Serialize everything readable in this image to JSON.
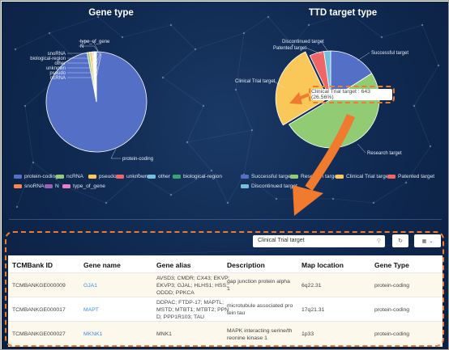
{
  "gene_type_panel": {
    "title": "Gene type",
    "slice_labels": [
      "type_of_gene",
      "N",
      "snoRNA",
      "biological-region",
      "other",
      "unknown",
      "pseudo",
      "ncRNA",
      "protein-coding"
    ],
    "legend": [
      {
        "label": "protein-coding",
        "color": "#5470c6"
      },
      {
        "label": "ncRNA",
        "color": "#91cc75"
      },
      {
        "label": "pseudo",
        "color": "#fac858"
      },
      {
        "label": "unknown",
        "color": "#ee6666"
      },
      {
        "label": "other",
        "color": "#73c0de"
      },
      {
        "label": "biological-region",
        "color": "#3ba272"
      },
      {
        "label": "snoRNA",
        "color": "#fc8452"
      },
      {
        "label": "N",
        "color": "#9a60b4"
      },
      {
        "label": "type_of_gene",
        "color": "#ea7ccc"
      }
    ]
  },
  "ttd_panel": {
    "title": "TTD target type",
    "slice_labels": [
      "Discontinued target",
      "Patented target",
      "Successful target",
      "Clinical Trial target",
      "Research target"
    ],
    "tooltip": "Clinical Trial target : 643 (26.56%)",
    "legend": [
      {
        "label": "Successful target",
        "color": "#5470c6"
      },
      {
        "label": "Research target",
        "color": "#91cc75"
      },
      {
        "label": "Clinical Trial target",
        "color": "#fac858"
      },
      {
        "label": "Patented target",
        "color": "#ee6666"
      },
      {
        "label": "Discontinued target",
        "color": "#73c0de"
      }
    ]
  },
  "chart_data": [
    {
      "type": "pie",
      "title": "Gene type",
      "categories": [
        "protein-coding",
        "ncRNA",
        "pseudo",
        "unknown",
        "other",
        "biological-region",
        "snoRNA",
        "N",
        "type_of_gene"
      ],
      "values": [
        97.0,
        0.8,
        0.8,
        0.3,
        0.3,
        0.2,
        0.2,
        0.2,
        0.2
      ],
      "legend_position": "bottom"
    },
    {
      "type": "pie",
      "title": "TTD target type",
      "categories": [
        "Successful target",
        "Research target",
        "Clinical Trial target",
        "Patented target",
        "Discontinued target"
      ],
      "values": [
        16.0,
        50.4,
        26.56,
        4.8,
        2.24
      ],
      "highlight": {
        "category": "Clinical Trial target",
        "value": 643,
        "percent": "26.56%"
      },
      "legend_position": "bottom"
    }
  ],
  "search": {
    "value": "Clinical Trial target",
    "icon": "search-icon"
  },
  "toolbar": {
    "refresh_icon": "refresh-icon",
    "columns_icon": "columns-grid-icon",
    "dropdown_icon": "chevron-down-icon"
  },
  "table": {
    "headers": [
      "TCMBank ID",
      "Gene name",
      "Gene alias",
      "Description",
      "Map location",
      "Gene Type"
    ],
    "rows": [
      {
        "id": "TCMBANKGE000009",
        "name": "GJA1",
        "alias": [
          "AVSD3; CMDR; CX43; EKVP;",
          "EKVP3; GJAL; HLHS1; HSS;",
          "ODDD; PPKCA"
        ],
        "description": [
          "gap junction protein alpha",
          "1"
        ],
        "map": "6q22.31",
        "type": "protein-coding"
      },
      {
        "id": "TCMBANKGE000017",
        "name": "MAPT",
        "alias": [
          "DDPAC; FTDP-17; MAPTL;",
          "MSTD; MTBT1; MTBT2; PPN",
          "D; PPP1R103; TAU"
        ],
        "description": [
          "microtubule associated pro",
          "tein tau"
        ],
        "map": "17q21.31",
        "type": "protein-coding"
      },
      {
        "id": "TCMBANKGE000027",
        "name": "MKNK1",
        "alias": [
          "MNK1"
        ],
        "description": [
          "MAPK interacting serine/th",
          "reonine kinase 1"
        ],
        "map": "1p33",
        "type": "protein-coding"
      }
    ]
  }
}
